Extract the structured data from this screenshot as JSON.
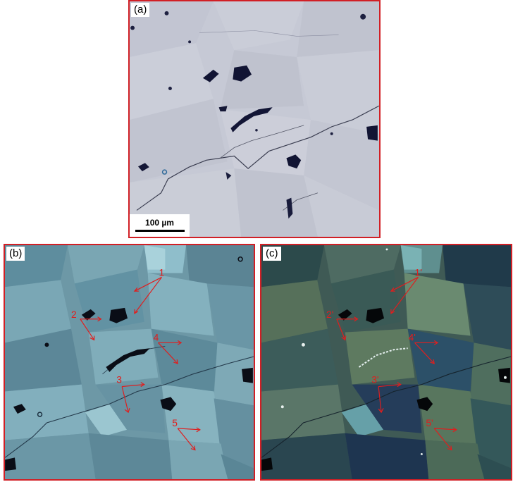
{
  "figure": {
    "panel_a": {
      "tag": "(a)",
      "scale_bar": "100 µm"
    },
    "panel_b": {
      "tag": "(b)",
      "labels": [
        "1",
        "2",
        "3",
        "4",
        "5"
      ]
    },
    "panel_c": {
      "tag": "(c)",
      "labels": [
        "1'",
        "2'",
        "3'",
        "4'",
        "5'"
      ]
    }
  },
  "colors": {
    "frame": "#d11f25",
    "annotation": "#e01e1e",
    "panel_a_bg": "#c6c9d5",
    "panel_b_bg": "#6d98a6",
    "panel_c_bg": "#3f5a55"
  }
}
